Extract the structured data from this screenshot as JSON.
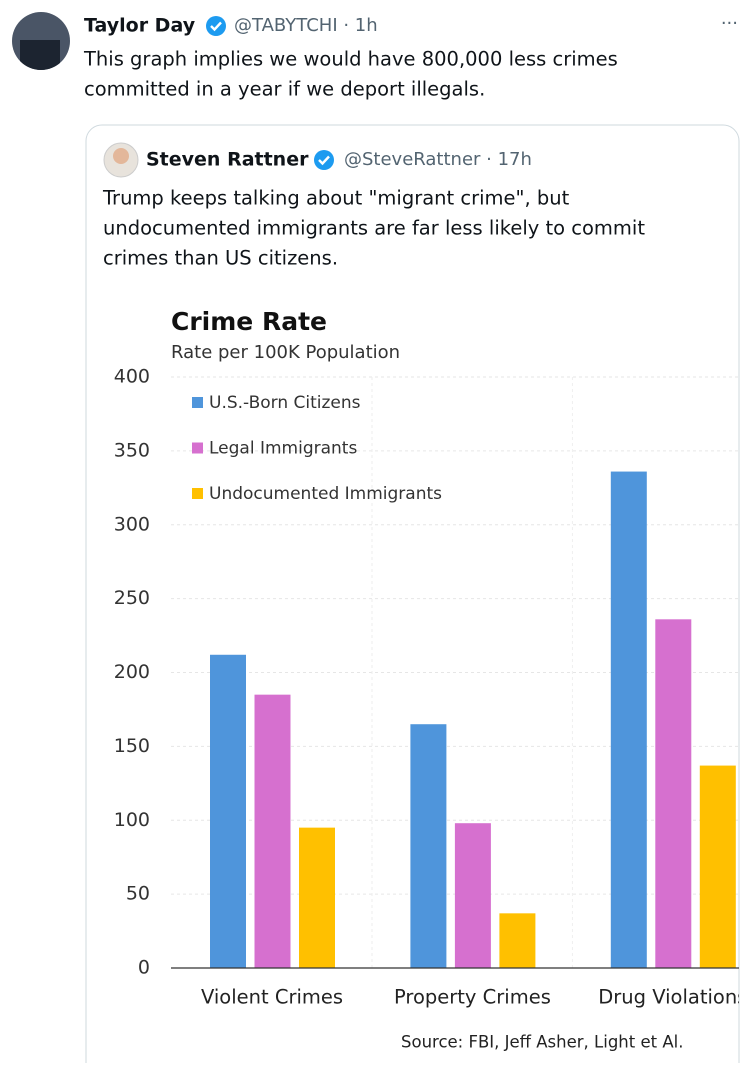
{
  "author": {
    "name": "Taylor Day",
    "handle": "@TABYTCHI · 1h"
  },
  "text_lines": [
    "This graph implies we would have 800,000 less crimes",
    "committed in a year if we deport illegals."
  ],
  "menu": "···",
  "quote": {
    "author": {
      "name": "Steven Rattner",
      "handle": "@SteveRattner · 17h"
    },
    "text_lines": [
      "Trump keeps talking about \"migrant crime\", but",
      "undocumented immigrants are far less likely to commit",
      "crimes than US citizens."
    ]
  },
  "chart_data": {
    "type": "bar",
    "title": "Crime Rate",
    "subtitle": "Rate per 100K Population",
    "categories": [
      "Violent Crimes",
      "Property Crimes",
      "Drug Violations"
    ],
    "series": [
      {
        "name": "U.S.-Born Citizens",
        "color": "#4f95db",
        "values": [
          212,
          165,
          336
        ]
      },
      {
        "name": "Legal Immigrants",
        "color": "#d670cf",
        "values": [
          185,
          98,
          236
        ]
      },
      {
        "name": "Undocumented Immigrants",
        "color": "#ffc000",
        "values": [
          95,
          37,
          137
        ]
      }
    ],
    "ylim": [
      0,
      400
    ],
    "yticks": [
      0,
      50,
      100,
      150,
      200,
      250,
      300,
      350,
      400
    ],
    "grid": true,
    "source": "Source: FBI, Jeff Asher, Light et Al."
  }
}
